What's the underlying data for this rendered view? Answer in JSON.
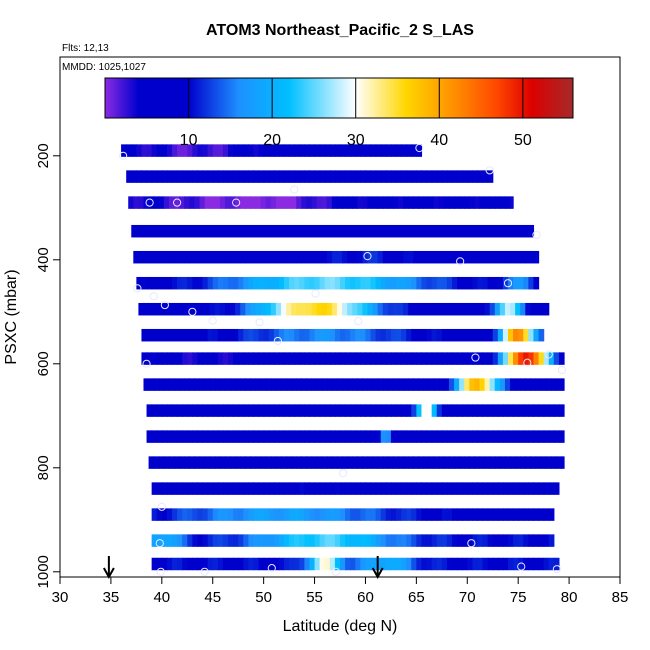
{
  "chart_data": {
    "type": "heatmap",
    "title": "ATOM3 Northeast_Pacific_2 S_LAS",
    "annotations": [
      "Flts: 12,13",
      "MMDD: 1025,1027"
    ],
    "xlabel": "Latitude (deg N)",
    "ylabel": "PSXC (mbar)",
    "xlim": [
      30,
      85
    ],
    "ylim": [
      1010,
      10
    ],
    "x_ticks": [
      "30",
      "35",
      "40",
      "45",
      "50",
      "55",
      "60",
      "65",
      "70",
      "75",
      "80",
      "85"
    ],
    "y_ticks": [
      "200",
      "400",
      "600",
      "800",
      "1000"
    ],
    "colorbar": {
      "range": [
        0,
        56
      ],
      "ticks": [
        "10",
        "20",
        "30",
        "40",
        "50"
      ],
      "tick_values": [
        10,
        20,
        30,
        40,
        50
      ],
      "stops": [
        {
          "v": 0,
          "c": "#8a2be2"
        },
        {
          "v": 4,
          "c": "#0000cd"
        },
        {
          "v": 10,
          "c": "#0000cd"
        },
        {
          "v": 16,
          "c": "#1e90ff"
        },
        {
          "v": 22,
          "c": "#00bfff"
        },
        {
          "v": 30,
          "c": "#ffffff"
        },
        {
          "v": 36,
          "c": "#ffd700"
        },
        {
          "v": 42,
          "c": "#ff8c00"
        },
        {
          "v": 47,
          "c": "#ff4500"
        },
        {
          "v": 51,
          "c": "#dd0000"
        },
        {
          "v": 56,
          "c": "#a52a2a"
        }
      ]
    },
    "arrows_latitude": [
      34.8,
      61.2
    ],
    "rows": [
      {
        "p": 190,
        "lat": [
          36,
          65.5
        ],
        "base": 6,
        "feat": [
          {
            "c": 43,
            "w": 4,
            "a": -4
          }
        ]
      },
      {
        "p": 240,
        "lat": [
          36.5,
          72.5
        ],
        "base": 6,
        "feat": [
          {
            "c": 60,
            "w": 3,
            "a": 2
          }
        ]
      },
      {
        "p": 290,
        "lat": [
          36.7,
          74.5
        ],
        "base": 5,
        "feat": [
          {
            "c": 46,
            "w": 5,
            "a": -4
          },
          {
            "c": 52,
            "w": 3,
            "a": -3
          }
        ]
      },
      {
        "p": 345,
        "lat": [
          37,
          76.5
        ],
        "base": 6,
        "feat": [
          {
            "c": 50,
            "w": 6,
            "a": 2
          }
        ]
      },
      {
        "p": 395,
        "lat": [
          37.2,
          77
        ],
        "base": 7,
        "feat": [
          {
            "c": 60,
            "w": 4,
            "a": 4
          }
        ]
      },
      {
        "p": 445,
        "lat": [
          37.5,
          77
        ],
        "base": 8,
        "feat": [
          {
            "c": 56,
            "w": 7,
            "a": 17
          },
          {
            "c": 75,
            "w": 1.2,
            "a": 8
          }
        ]
      },
      {
        "p": 495,
        "lat": [
          37.7,
          78
        ],
        "base": 8,
        "feat": [
          {
            "c": 55,
            "w": 4,
            "a": 28
          },
          {
            "c": 74,
            "w": 1,
            "a": 20
          }
        ]
      },
      {
        "p": 545,
        "lat": [
          38,
          77.5
        ],
        "base": 8,
        "feat": [
          {
            "c": 56,
            "w": 6,
            "a": 8
          },
          {
            "c": 75,
            "w": 1.2,
            "a": 34
          }
        ]
      },
      {
        "p": 590,
        "lat": [
          38,
          79.5
        ],
        "base": 7,
        "feat": [
          {
            "c": 44,
            "w": 5,
            "a": -3
          },
          {
            "c": 75.8,
            "w": 1.5,
            "a": 44
          }
        ]
      },
      {
        "p": 640,
        "lat": [
          38.2,
          79.5
        ],
        "base": 7,
        "feat": [
          {
            "c": 71,
            "w": 1.5,
            "a": 32
          }
        ]
      },
      {
        "p": 690,
        "lat": [
          38.5,
          79.5
        ],
        "base": 6,
        "feat": [
          {
            "c": 66,
            "w": 0.8,
            "a": 24
          }
        ]
      },
      {
        "p": 740,
        "lat": [
          38.5,
          79.5
        ],
        "base": 6,
        "feat": [
          {
            "c": 62,
            "w": 0.5,
            "a": 10
          }
        ]
      },
      {
        "p": 790,
        "lat": [
          38.7,
          79.5
        ],
        "base": 6,
        "feat": [
          {
            "c": 58,
            "w": 4,
            "a": 2
          }
        ]
      },
      {
        "p": 840,
        "lat": [
          39,
          79
        ],
        "base": 6,
        "feat": [
          {
            "c": 55,
            "w": 5,
            "a": 3
          }
        ]
      },
      {
        "p": 890,
        "lat": [
          39,
          78.5
        ],
        "base": 8,
        "feat": [
          {
            "c": 52,
            "w": 8,
            "a": 10
          }
        ]
      },
      {
        "p": 940,
        "lat": [
          39,
          78.5
        ],
        "base": 10,
        "feat": [
          {
            "c": 40,
            "w": 1.5,
            "a": 10
          },
          {
            "c": 56,
            "w": 5,
            "a": 14
          }
        ]
      },
      {
        "p": 985,
        "lat": [
          39,
          79
        ],
        "base": 10,
        "feat": [
          {
            "c": 56,
            "w": 1.2,
            "a": 20
          },
          {
            "c": 62,
            "w": 2,
            "a": 10
          }
        ]
      }
    ],
    "points": [
      [
        36.2,
        200
      ],
      [
        65.3,
        185
      ],
      [
        72.2,
        228
      ],
      [
        38.8,
        290
      ],
      [
        41.5,
        290
      ],
      [
        47.3,
        290
      ],
      [
        53.0,
        265
      ],
      [
        76.8,
        352
      ],
      [
        37.6,
        455
      ],
      [
        39.2,
        470
      ],
      [
        40.3,
        487
      ],
      [
        43.0,
        500
      ],
      [
        45.0,
        517
      ],
      [
        49.6,
        520
      ],
      [
        55.1,
        465
      ],
      [
        59.3,
        518
      ],
      [
        60.2,
        393
      ],
      [
        69.3,
        403
      ],
      [
        74.0,
        445
      ],
      [
        51.4,
        556
      ],
      [
        78.0,
        582
      ],
      [
        38.5,
        600
      ],
      [
        70.8,
        588
      ],
      [
        75.9,
        598
      ],
      [
        79.3,
        612
      ],
      [
        57.8,
        810
      ],
      [
        40.0,
        875
      ],
      [
        39.8,
        945
      ],
      [
        70.4,
        945
      ],
      [
        39.9,
        1000
      ],
      [
        44.2,
        1000
      ],
      [
        50.8,
        993
      ],
      [
        57.1,
        1000
      ],
      [
        75.3,
        990
      ],
      [
        78.8,
        995
      ]
    ]
  }
}
